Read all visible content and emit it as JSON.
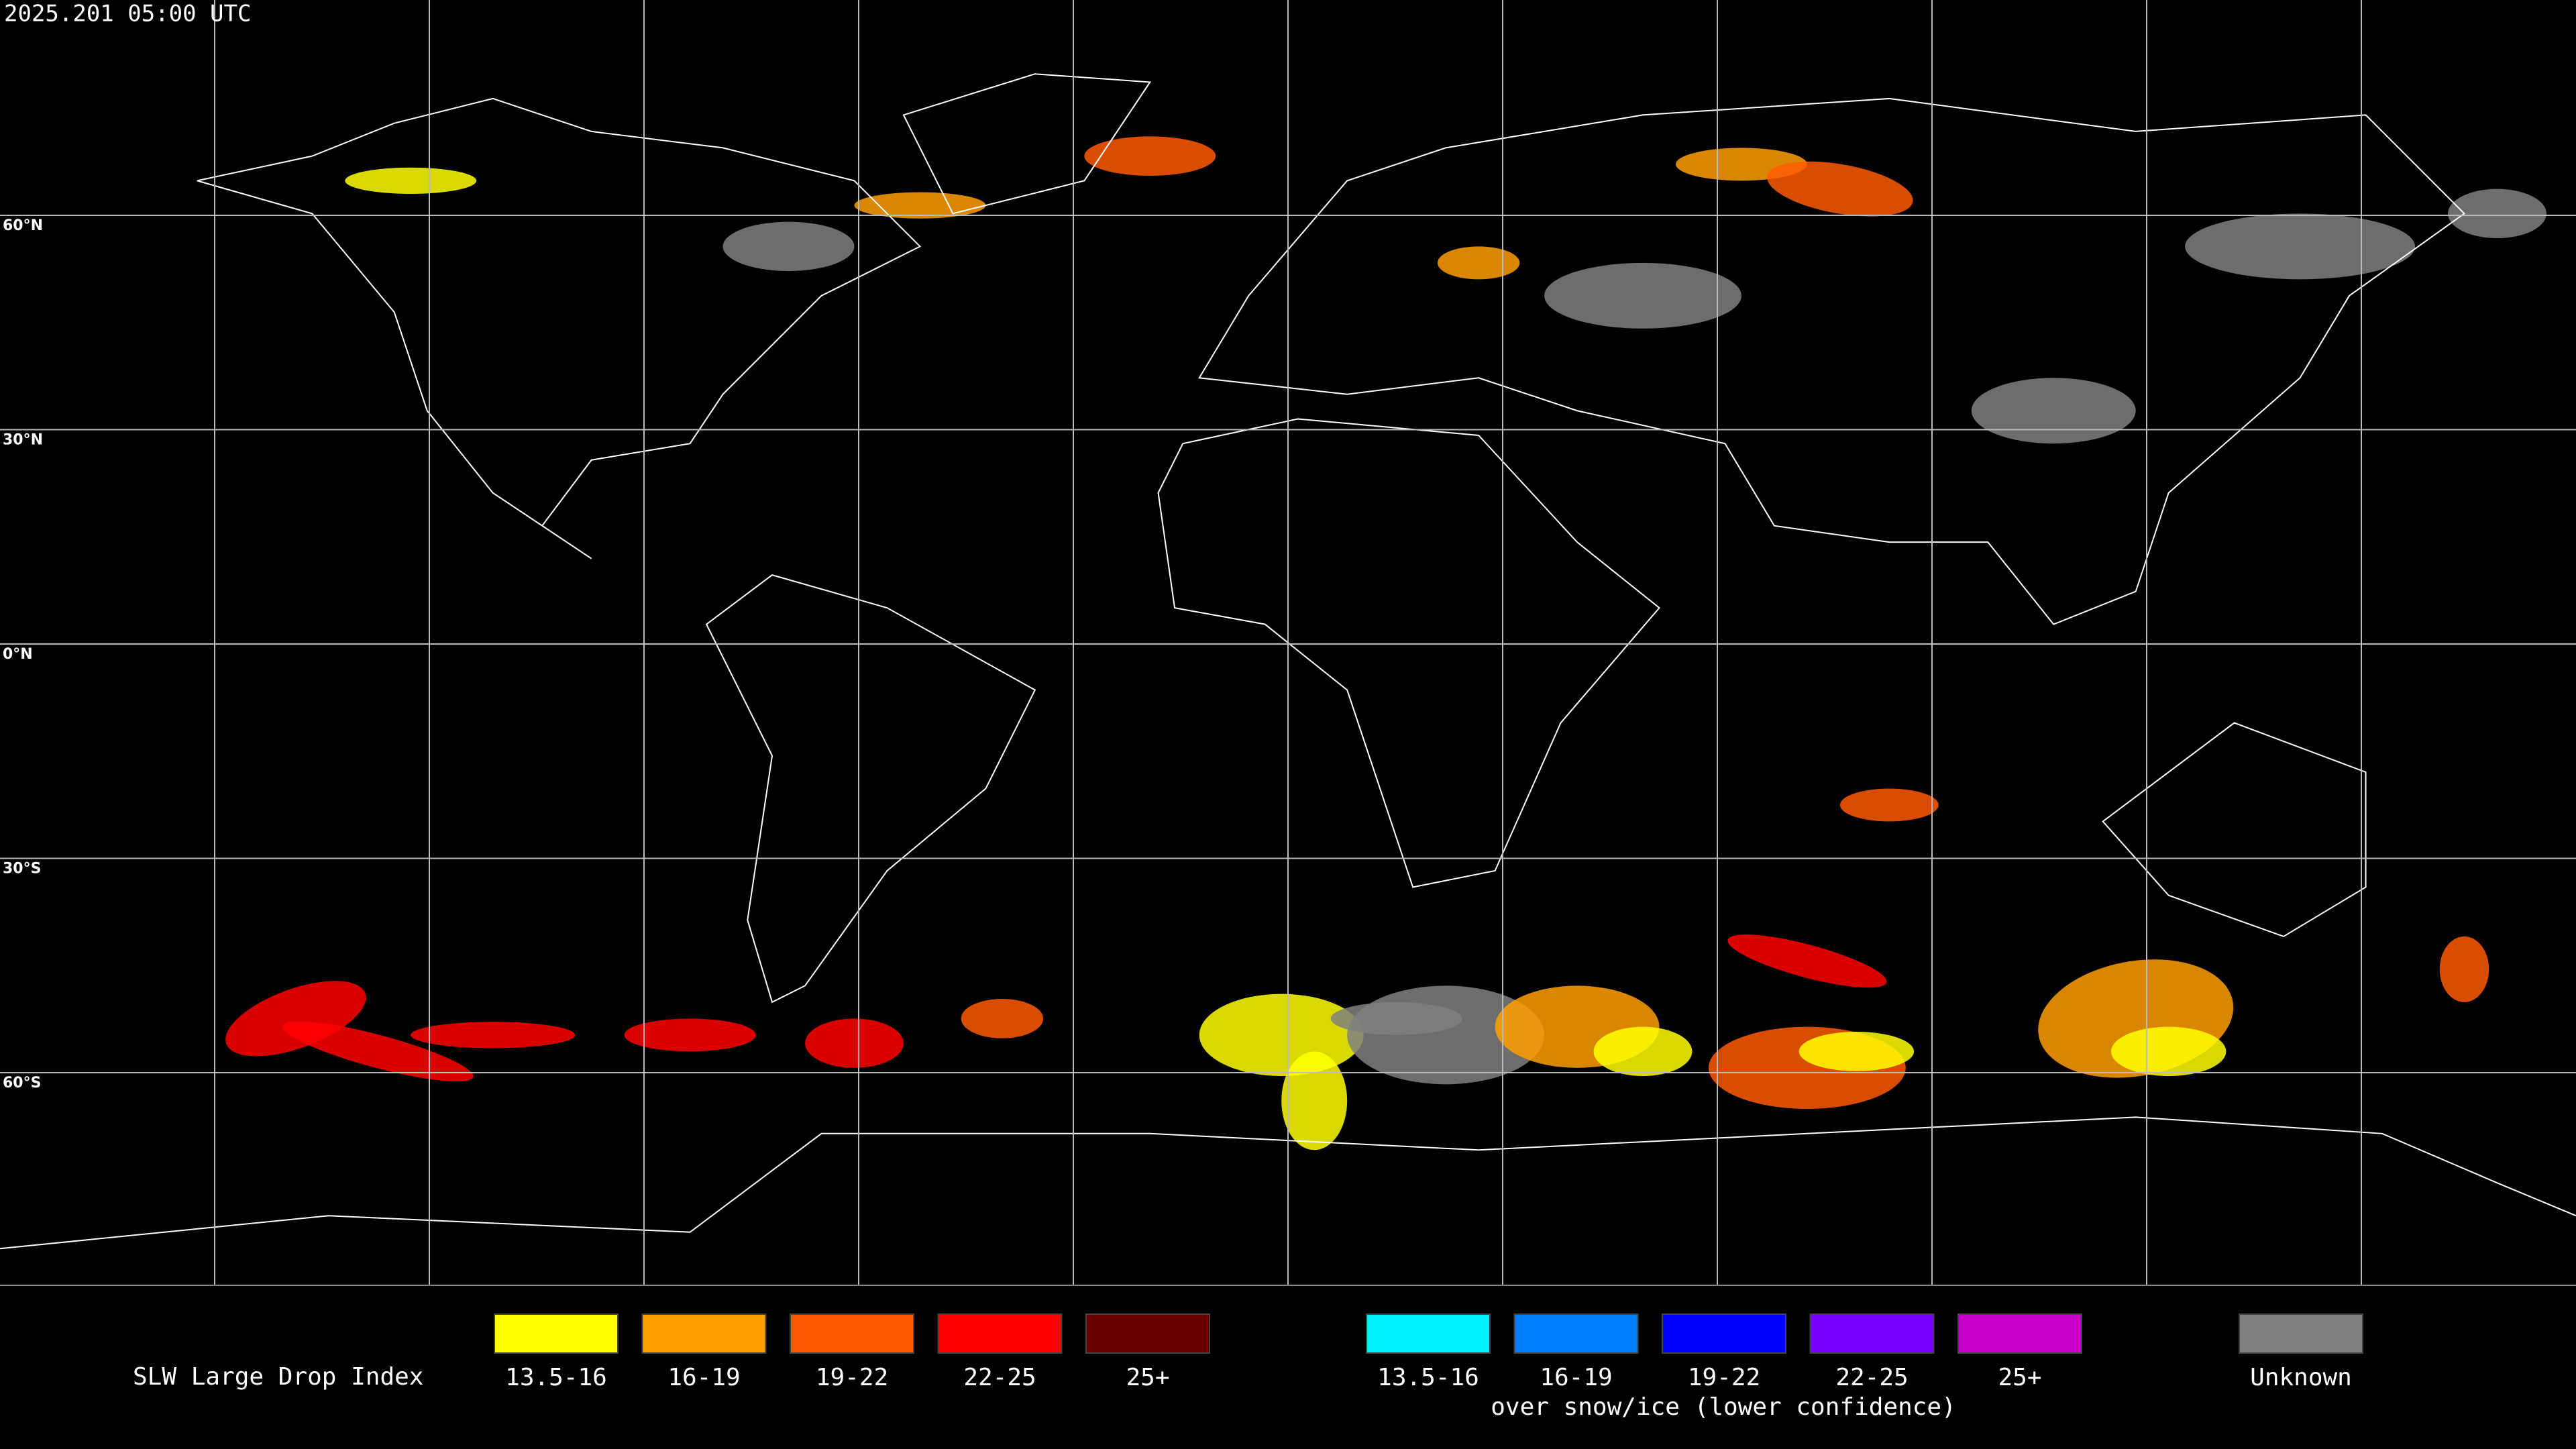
{
  "header": {
    "timestamp": "2025.201 05:00 UTC"
  },
  "map": {
    "latitude_labels": [
      "60°N",
      "30°N",
      "0°N",
      "30°S",
      "60°S"
    ]
  },
  "legend": {
    "title": "SLW Large Drop Index",
    "groups": [
      {
        "items": [
          {
            "label": "13.5-16",
            "color": "#ffff00"
          },
          {
            "label": "16-19",
            "color": "#ff9f00"
          },
          {
            "label": "19-22",
            "color": "#ff5a00"
          },
          {
            "label": "22-25",
            "color": "#ff0000"
          },
          {
            "label": "25+",
            "color": "#6b0000"
          }
        ]
      },
      {
        "items": [
          {
            "label": "13.5-16",
            "color": "#00f0ff"
          },
          {
            "label": "16-19",
            "color": "#0080ff"
          },
          {
            "label": "19-22",
            "color": "#0000ff"
          },
          {
            "label": "22-25",
            "color": "#7a00ff"
          },
          {
            "label": "25+",
            "color": "#c800c8"
          }
        ],
        "note": "over snow/ice (lower confidence)"
      }
    ],
    "unknown": {
      "label": "Unknown",
      "color": "#808080"
    }
  }
}
